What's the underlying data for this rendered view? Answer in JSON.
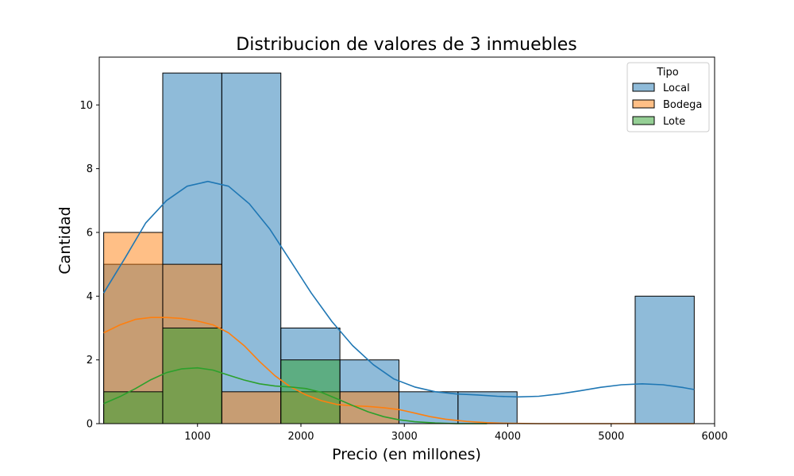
{
  "chart_data": {
    "type": "histogram",
    "title": "Distribucion de valores de 3 inmuebles",
    "xlabel": "Precio (en millones)",
    "ylabel": "Cantidad",
    "xlim": [
      50,
      6000
    ],
    "ylim": [
      0,
      11.5
    ],
    "xticks": [
      1000,
      2000,
      3000,
      4000,
      5000,
      6000
    ],
    "yticks": [
      0,
      2,
      4,
      6,
      8,
      10
    ],
    "grid": false,
    "legend": {
      "title": "Tipo",
      "placement": "top-right"
    },
    "bin_edges": [
      93,
      664,
      1235,
      1806,
      2377,
      2948,
      3519,
      4090,
      4661,
      5232,
      5803
    ],
    "series": [
      {
        "name": "Local",
        "color": "#1f77b4",
        "counts": [
          5,
          11,
          11,
          3,
          2,
          1,
          1,
          0,
          0,
          4
        ],
        "kde": [
          [
            93,
            4.1
          ],
          [
            300,
            5.2
          ],
          [
            500,
            6.3
          ],
          [
            700,
            7.0
          ],
          [
            900,
            7.45
          ],
          [
            1100,
            7.6
          ],
          [
            1300,
            7.45
          ],
          [
            1500,
            6.9
          ],
          [
            1700,
            6.1
          ],
          [
            1900,
            5.1
          ],
          [
            2100,
            4.1
          ],
          [
            2300,
            3.2
          ],
          [
            2500,
            2.45
          ],
          [
            2700,
            1.85
          ],
          [
            2900,
            1.4
          ],
          [
            3100,
            1.15
          ],
          [
            3300,
            1.0
          ],
          [
            3500,
            0.93
          ],
          [
            3700,
            0.9
          ],
          [
            3900,
            0.86
          ],
          [
            4100,
            0.84
          ],
          [
            4300,
            0.86
          ],
          [
            4500,
            0.93
          ],
          [
            4700,
            1.03
          ],
          [
            4900,
            1.14
          ],
          [
            5100,
            1.22
          ],
          [
            5300,
            1.25
          ],
          [
            5500,
            1.22
          ],
          [
            5700,
            1.13
          ],
          [
            5803,
            1.07
          ]
        ]
      },
      {
        "name": "Bodega",
        "color": "#ff7f0e",
        "counts": [
          6,
          5,
          1,
          1,
          1,
          0,
          0,
          0,
          0,
          0
        ],
        "kde": [
          [
            93,
            2.85
          ],
          [
            250,
            3.1
          ],
          [
            400,
            3.27
          ],
          [
            550,
            3.33
          ],
          [
            700,
            3.33
          ],
          [
            850,
            3.3
          ],
          [
            1000,
            3.22
          ],
          [
            1150,
            3.1
          ],
          [
            1300,
            2.85
          ],
          [
            1450,
            2.45
          ],
          [
            1600,
            1.95
          ],
          [
            1750,
            1.5
          ],
          [
            1900,
            1.15
          ],
          [
            2050,
            0.9
          ],
          [
            2200,
            0.72
          ],
          [
            2350,
            0.6
          ],
          [
            2500,
            0.56
          ],
          [
            2650,
            0.54
          ],
          [
            2800,
            0.5
          ],
          [
            2950,
            0.44
          ],
          [
            3100,
            0.33
          ],
          [
            3250,
            0.22
          ],
          [
            3400,
            0.14
          ],
          [
            3600,
            0.07
          ],
          [
            3800,
            0.03
          ],
          [
            4000,
            0.01
          ],
          [
            4300,
            0.0
          ],
          [
            5803,
            0.0
          ]
        ]
      },
      {
        "name": "Lote",
        "color": "#2ca02c",
        "counts": [
          1,
          3,
          0,
          2,
          0,
          0,
          0,
          0,
          0,
          0
        ],
        "kde": [
          [
            93,
            0.63
          ],
          [
            250,
            0.85
          ],
          [
            400,
            1.1
          ],
          [
            550,
            1.38
          ],
          [
            700,
            1.6
          ],
          [
            850,
            1.72
          ],
          [
            1000,
            1.75
          ],
          [
            1150,
            1.68
          ],
          [
            1300,
            1.52
          ],
          [
            1450,
            1.37
          ],
          [
            1600,
            1.25
          ],
          [
            1750,
            1.18
          ],
          [
            1900,
            1.15
          ],
          [
            2050,
            1.1
          ],
          [
            2200,
            0.98
          ],
          [
            2350,
            0.78
          ],
          [
            2500,
            0.57
          ],
          [
            2650,
            0.37
          ],
          [
            2800,
            0.22
          ],
          [
            2950,
            0.12
          ],
          [
            3100,
            0.06
          ],
          [
            3300,
            0.02
          ],
          [
            3500,
            0.0
          ],
          [
            3800,
            0.0
          ]
        ]
      }
    ]
  }
}
